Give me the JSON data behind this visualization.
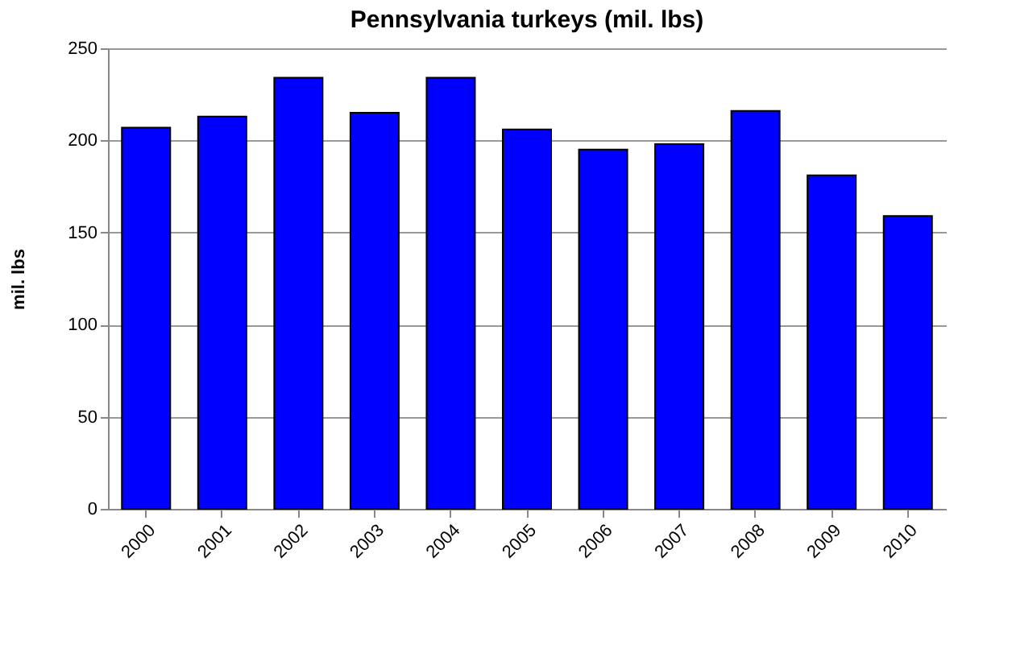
{
  "chart_data": {
    "type": "bar",
    "title": "Pennsylvania turkeys (mil. lbs)",
    "ylabel": "mil. lbs",
    "categories": [
      "2000",
      "2001",
      "2002",
      "2003",
      "2004",
      "2005",
      "2006",
      "2007",
      "2008",
      "2009",
      "2010"
    ],
    "values": [
      207,
      213,
      234,
      215,
      234,
      206,
      195,
      198,
      216,
      181,
      159
    ],
    "color": "#0000ff",
    "ylim": [
      0,
      250
    ],
    "yticks": [
      0,
      50,
      100,
      150,
      200,
      250
    ],
    "grid": "y"
  }
}
